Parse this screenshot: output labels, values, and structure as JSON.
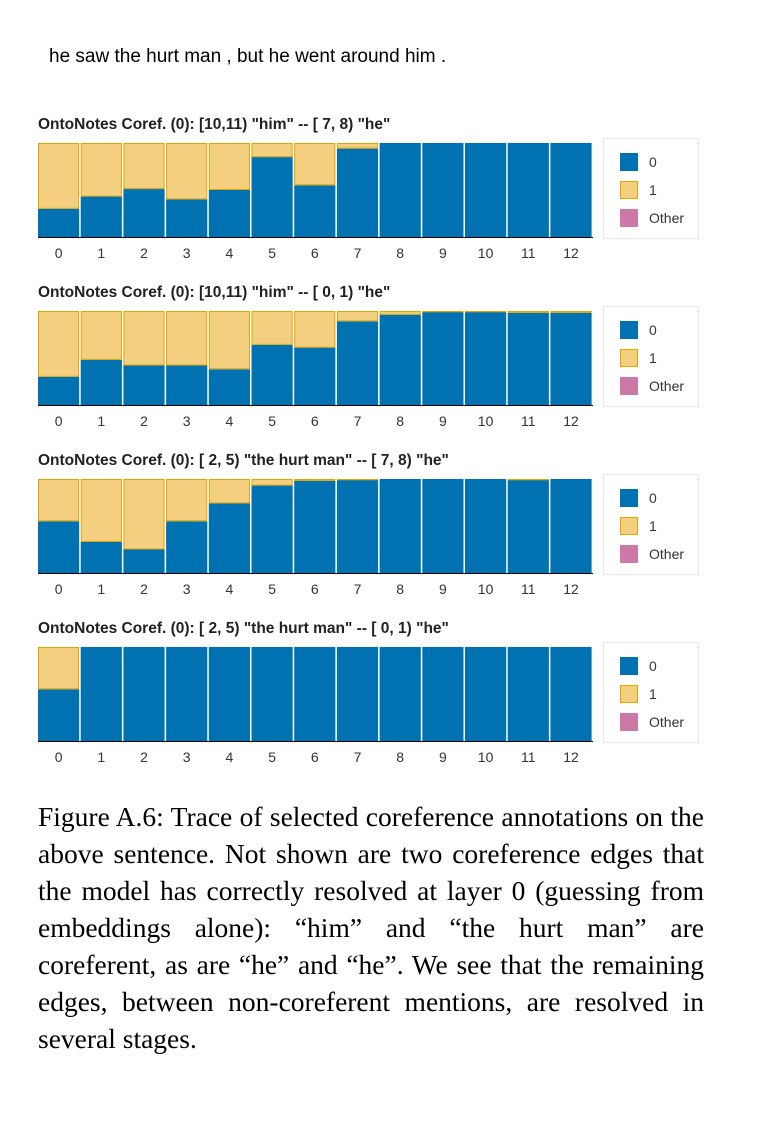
{
  "sentence": "he saw the hurt man , but he went around him .",
  "legend_labels": [
    "0",
    "1",
    "Other"
  ],
  "colors": {
    "class0": "#0072b2",
    "class1": "#f5cf80",
    "class1_border": "#e0a500",
    "other": "#cc79a7"
  },
  "chart_data": [
    {
      "type": "bar",
      "stacked": true,
      "title": "OntoNotes Coref. (0): [10,11) \"him\" -- [ 7, 8) \"he\"",
      "categories": [
        "0",
        "1",
        "2",
        "3",
        "4",
        "5",
        "6",
        "7",
        "8",
        "9",
        "10",
        "11",
        "12"
      ],
      "ylim": [
        0,
        1
      ],
      "series": [
        {
          "name": "0",
          "values": [
            0.3,
            0.43,
            0.51,
            0.4,
            0.5,
            0.85,
            0.55,
            0.94,
            1.0,
            1.0,
            1.0,
            1.0,
            1.0
          ]
        },
        {
          "name": "1",
          "values": [
            0.7,
            0.57,
            0.49,
            0.6,
            0.5,
            0.15,
            0.45,
            0.06,
            0.0,
            0.0,
            0.0,
            0.0,
            0.0
          ]
        },
        {
          "name": "Other",
          "values": [
            0,
            0,
            0,
            0,
            0,
            0,
            0,
            0,
            0,
            0,
            0,
            0,
            0
          ]
        }
      ]
    },
    {
      "type": "bar",
      "stacked": true,
      "title": "OntoNotes Coref. (0): [10,11) \"him\" -- [ 0, 1) \"he\"",
      "categories": [
        "0",
        "1",
        "2",
        "3",
        "4",
        "5",
        "6",
        "7",
        "8",
        "9",
        "10",
        "11",
        "12"
      ],
      "ylim": [
        0,
        1
      ],
      "series": [
        {
          "name": "0",
          "values": [
            0.3,
            0.48,
            0.42,
            0.42,
            0.38,
            0.64,
            0.61,
            0.89,
            0.96,
            0.99,
            0.99,
            0.98,
            0.98
          ]
        },
        {
          "name": "1",
          "values": [
            0.7,
            0.52,
            0.58,
            0.58,
            0.62,
            0.36,
            0.39,
            0.11,
            0.04,
            0.01,
            0.01,
            0.02,
            0.02
          ]
        },
        {
          "name": "Other",
          "values": [
            0,
            0,
            0,
            0,
            0,
            0,
            0,
            0,
            0,
            0,
            0,
            0,
            0
          ]
        }
      ]
    },
    {
      "type": "bar",
      "stacked": true,
      "title": "OntoNotes Coref. (0): [ 2, 5) \"the hurt man\" -- [ 7, 8) \"he\"",
      "categories": [
        "0",
        "1",
        "2",
        "3",
        "4",
        "5",
        "6",
        "7",
        "8",
        "9",
        "10",
        "11",
        "12"
      ],
      "ylim": [
        0,
        1
      ],
      "series": [
        {
          "name": "0",
          "values": [
            0.55,
            0.33,
            0.25,
            0.55,
            0.74,
            0.93,
            0.98,
            0.99,
            1.0,
            1.0,
            1.0,
            0.99,
            1.0
          ]
        },
        {
          "name": "1",
          "values": [
            0.45,
            0.67,
            0.75,
            0.45,
            0.26,
            0.07,
            0.02,
            0.01,
            0.0,
            0.0,
            0.0,
            0.01,
            0.0
          ]
        },
        {
          "name": "Other",
          "values": [
            0,
            0,
            0,
            0,
            0,
            0,
            0,
            0,
            0,
            0,
            0,
            0,
            0
          ]
        }
      ]
    },
    {
      "type": "bar",
      "stacked": true,
      "title": "OntoNotes Coref. (0): [ 2, 5) \"the hurt man\" -- [ 0, 1) \"he\"",
      "categories": [
        "0",
        "1",
        "2",
        "3",
        "4",
        "5",
        "6",
        "7",
        "8",
        "9",
        "10",
        "11",
        "12"
      ],
      "ylim": [
        0,
        1
      ],
      "series": [
        {
          "name": "0",
          "values": [
            0.55,
            1.0,
            1.0,
            1.0,
            1.0,
            1.0,
            1.0,
            1.0,
            1.0,
            1.0,
            1.0,
            1.0,
            1.0
          ]
        },
        {
          "name": "1",
          "values": [
            0.45,
            0.0,
            0.0,
            0.0,
            0.0,
            0.0,
            0.0,
            0.0,
            0.0,
            0.0,
            0.0,
            0.0,
            0.0
          ]
        },
        {
          "name": "Other",
          "values": [
            0,
            0,
            0,
            0,
            0,
            0,
            0,
            0,
            0,
            0,
            0,
            0,
            0
          ]
        }
      ]
    }
  ],
  "caption": "Figure A.6: Trace of selected coreference annotations on the above sentence. Not shown are two coreference edges that the model has correctly resolved at layer 0 (guessing from embeddings alone): “him” and “the hurt man” are coreferent, as are “he” and “he”. We see that the remaining edges, between non-coreferent mentions, are resolved in several stages."
}
